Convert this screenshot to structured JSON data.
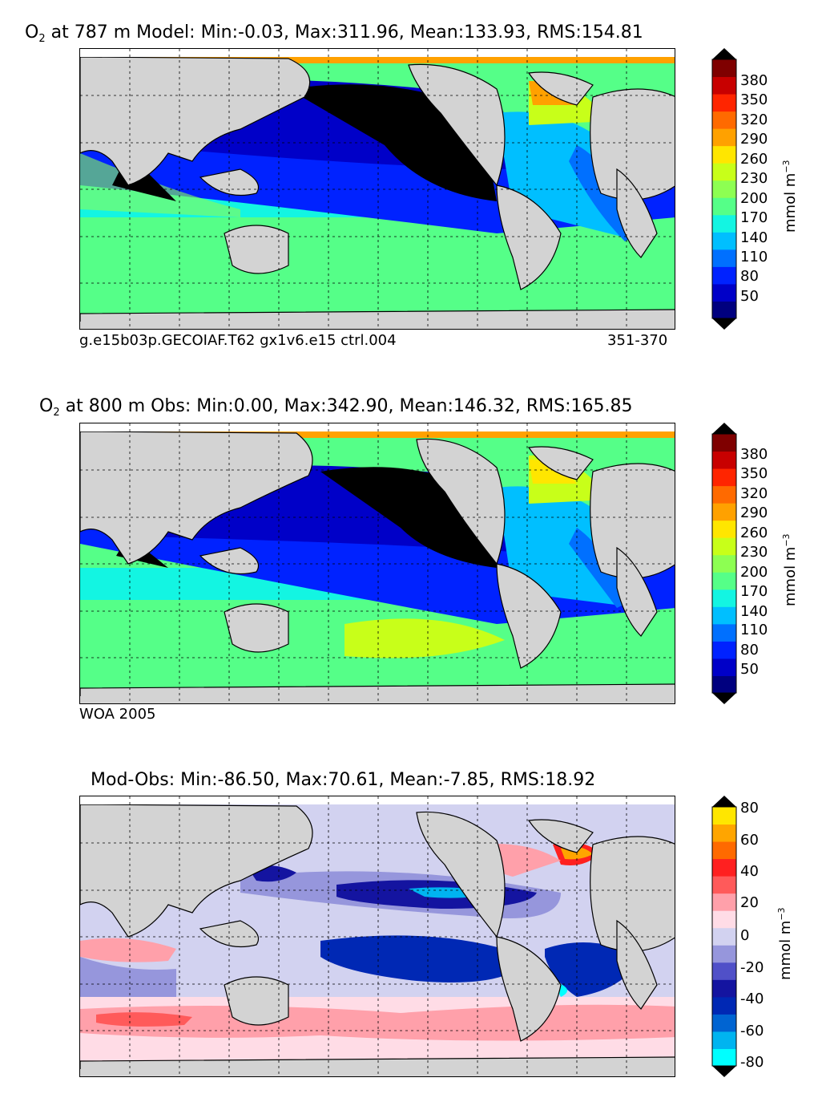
{
  "panels": [
    {
      "title_o": "O",
      "title_sub": "2",
      "title_rest": " at 787 m Model: Min:-0.03, Max:311.96, Mean:133.93, RMS:154.81",
      "note_left": "g.e15b03p.GECOIAF.T62 gx1v6.e15 ctrl.004",
      "note_right": "351-370",
      "colorbar": {
        "ticks": [
          "380",
          "350",
          "320",
          "290",
          "260",
          "230",
          "200",
          "170",
          "140",
          "110",
          "80",
          "50"
        ],
        "unit_base": "mmol m",
        "unit_sup": "−3",
        "colors": [
          "#00007f",
          "#0000c8",
          "#0022ff",
          "#0070ff",
          "#00bfff",
          "#13f5e2",
          "#55ff88",
          "#8dff52",
          "#c8ff19",
          "#ffe600",
          "#ffa100",
          "#ff6a00",
          "#ff2500",
          "#c80000",
          "#7f0000"
        ],
        "extend_low": "#000000",
        "extend_high": "#000000"
      }
    },
    {
      "title_o": "O",
      "title_sub": "2",
      "title_rest": " at 800 m Obs: Min:0.00, Max:342.90, Mean:146.32, RMS:165.85",
      "note_left": "WOA 2005",
      "colorbar": {
        "ticks": [
          "380",
          "350",
          "320",
          "290",
          "260",
          "230",
          "200",
          "170",
          "140",
          "110",
          "80",
          "50"
        ],
        "unit_base": "mmol m",
        "unit_sup": "−3",
        "colors": [
          "#00007f",
          "#0000c8",
          "#0022ff",
          "#0070ff",
          "#00bfff",
          "#13f5e2",
          "#55ff88",
          "#8dff52",
          "#c8ff19",
          "#ffe600",
          "#ffa100",
          "#ff6a00",
          "#ff2500",
          "#c80000",
          "#7f0000"
        ],
        "extend_low": "#000000",
        "extend_high": "#000000"
      }
    },
    {
      "title_text": "Mod-Obs: Min:-86.50, Max:70.61, Mean:-7.85, RMS:18.92",
      "colorbar": {
        "ticks": [
          "80",
          "60",
          "40",
          "20",
          "0",
          "-20",
          "-40",
          "-60",
          "-80"
        ],
        "unit_base": "mmol m",
        "unit_sup": "−3",
        "colors": [
          "#00ffff",
          "#00b4f0",
          "#0064d2",
          "#0028b4",
          "#1414a0",
          "#5050c8",
          "#9696dc",
          "#d2d2f0",
          "#ffdce6",
          "#ffa0aa",
          "#ff5a5a",
          "#ff2020",
          "#ff6a00",
          "#ffa500",
          "#ffe600"
        ],
        "extend_low": "#000000",
        "extend_high": "#000000"
      }
    }
  ],
  "chart_data": [
    {
      "type": "heatmap",
      "title": "O2 at 787 m Model",
      "variable": "O2",
      "depth_m": 787,
      "stats": {
        "min": -0.03,
        "max": 311.96,
        "mean": 133.93,
        "rms": 154.81
      },
      "case": "g.e15b03p.GECOIAF.T62 gx1v6.e15 ctrl.004",
      "years": "351-370",
      "colorbar_ticks": [
        380,
        350,
        320,
        290,
        260,
        230,
        200,
        170,
        140,
        110,
        80,
        50
      ],
      "units": "mmol m^-3",
      "grid": true
    },
    {
      "type": "heatmap",
      "title": "O2 at 800 m Obs",
      "variable": "O2",
      "depth_m": 800,
      "stats": {
        "min": 0.0,
        "max": 342.9,
        "mean": 146.32,
        "rms": 165.85
      },
      "source": "WOA 2005",
      "colorbar_ticks": [
        380,
        350,
        320,
        290,
        260,
        230,
        200,
        170,
        140,
        110,
        80,
        50
      ],
      "units": "mmol m^-3",
      "grid": true
    },
    {
      "type": "heatmap",
      "title": "Mod-Obs",
      "stats": {
        "min": -86.5,
        "max": 70.61,
        "mean": -7.85,
        "rms": 18.92
      },
      "colorbar_ticks": [
        80,
        60,
        40,
        20,
        0,
        -20,
        -40,
        -60,
        -80
      ],
      "units": "mmol m^-3",
      "grid": true
    }
  ]
}
